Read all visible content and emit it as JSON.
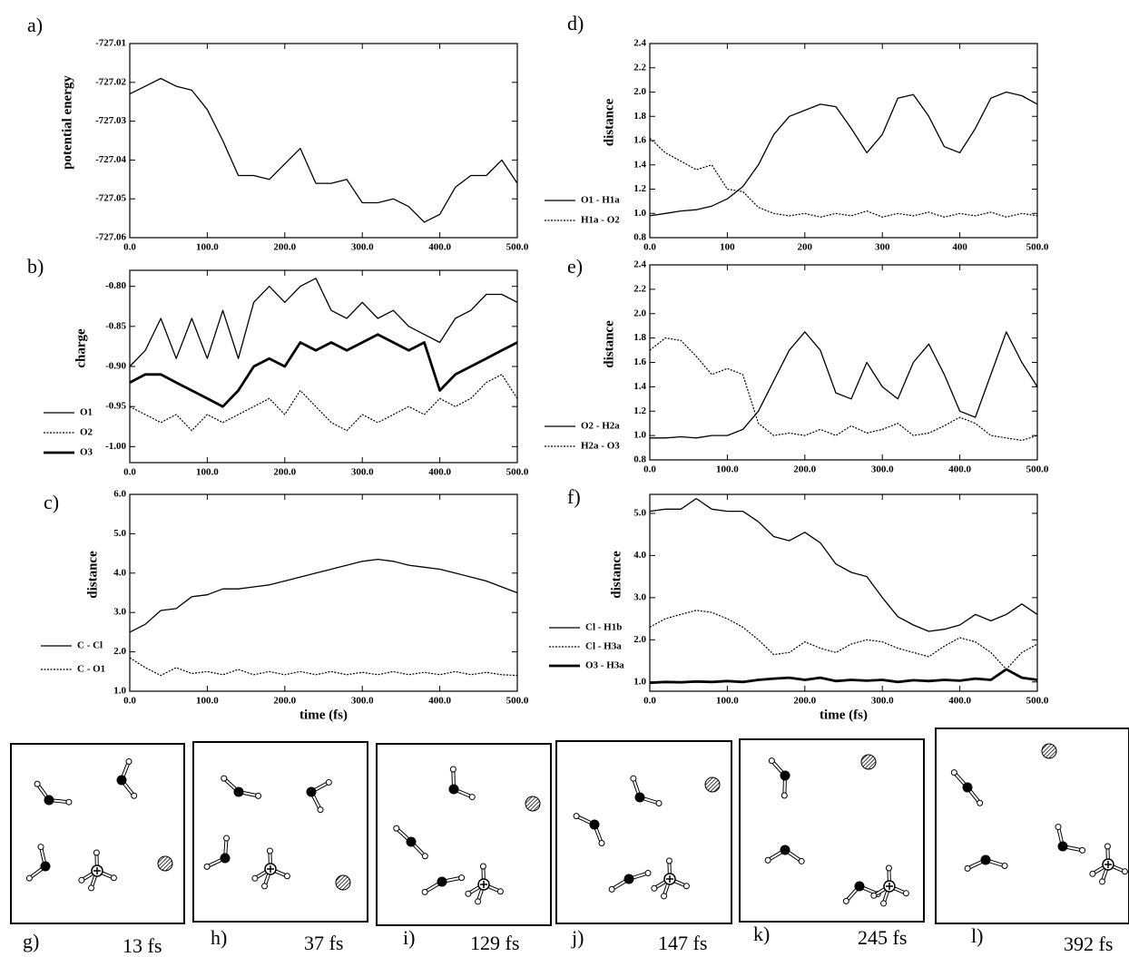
{
  "chart_data": [
    {
      "type": "line",
      "panel": "a)",
      "ylabel": "potential energy",
      "x": [
        0,
        20,
        40,
        60,
        80,
        100,
        120,
        140,
        160,
        180,
        200,
        220,
        240,
        260,
        280,
        300,
        320,
        340,
        360,
        380,
        400,
        420,
        440,
        460,
        480,
        500
      ],
      "series": [
        {
          "name": null,
          "color": "#000000",
          "style": "solid",
          "values": [
            -727.023,
            -727.021,
            -727.019,
            -727.021,
            -727.022,
            -727.027,
            -727.035,
            -727.044,
            -727.044,
            -727.045,
            -727.041,
            -727.037,
            -727.046,
            -727.046,
            -727.045,
            -727.051,
            -727.051,
            -727.05,
            -727.052,
            -727.056,
            -727.054,
            -727.047,
            -727.044,
            -727.044,
            -727.04,
            -727.046
          ]
        }
      ],
      "xlim": [
        0,
        500
      ],
      "xticks": [
        {
          "value": 0,
          "label": "0.0"
        },
        {
          "value": 100,
          "label": "100.0"
        },
        {
          "value": 200,
          "label": "200.0"
        },
        {
          "value": 300,
          "label": "300.0"
        },
        {
          "value": 400,
          "label": "400.0"
        },
        {
          "value": 500,
          "label": "500.0"
        }
      ],
      "ylim": [
        -727.06,
        -727.01
      ],
      "yticks": [
        -727.06,
        -727.05,
        -727.04,
        -727.03,
        -727.02,
        -727.01
      ]
    },
    {
      "type": "line",
      "panel": "b)",
      "ylabel": "charge",
      "x": [
        0,
        20,
        40,
        60,
        80,
        100,
        120,
        140,
        160,
        180,
        200,
        220,
        240,
        260,
        280,
        300,
        320,
        340,
        360,
        380,
        400,
        420,
        440,
        460,
        480,
        500
      ],
      "series": [
        {
          "name": "O1",
          "color": "#000000",
          "style": "solid",
          "values": [
            -0.9,
            -0.88,
            -0.84,
            -0.89,
            -0.84,
            -0.89,
            -0.83,
            -0.89,
            -0.82,
            -0.8,
            -0.82,
            -0.8,
            -0.79,
            -0.83,
            -0.84,
            -0.82,
            -0.84,
            -0.83,
            -0.85,
            -0.86,
            -0.87,
            -0.84,
            -0.83,
            -0.81,
            -0.81,
            -0.82
          ]
        },
        {
          "name": "O2",
          "color": "#000000",
          "style": "dotted",
          "values": [
            -0.95,
            -0.96,
            -0.97,
            -0.96,
            -0.98,
            -0.96,
            -0.97,
            -0.96,
            -0.95,
            -0.94,
            -0.96,
            -0.93,
            -0.95,
            -0.97,
            -0.98,
            -0.96,
            -0.97,
            -0.96,
            -0.95,
            -0.96,
            -0.94,
            -0.95,
            -0.94,
            -0.92,
            -0.91,
            -0.94
          ]
        },
        {
          "name": "O3",
          "color": "#000000",
          "style": "bold",
          "values": [
            -0.92,
            -0.91,
            -0.91,
            -0.92,
            -0.93,
            -0.94,
            -0.95,
            -0.93,
            -0.9,
            -0.89,
            -0.9,
            -0.87,
            -0.88,
            -0.87,
            -0.88,
            -0.87,
            -0.86,
            -0.87,
            -0.88,
            -0.87,
            -0.93,
            -0.91,
            -0.9,
            -0.89,
            -0.88,
            -0.87
          ]
        }
      ],
      "xlim": [
        0,
        500
      ],
      "xticks": [
        {
          "value": 0,
          "label": "0.0"
        },
        {
          "value": 100,
          "label": "100.0"
        },
        {
          "value": 200,
          "label": "200.0"
        },
        {
          "value": 300,
          "label": "300.0"
        },
        {
          "value": 400,
          "label": "400.0"
        },
        {
          "value": 500,
          "label": "500.0"
        }
      ],
      "ylim": [
        -1.02,
        -0.78
      ],
      "yticks": [
        {
          "value": -1.0,
          "label": "-1.00"
        },
        {
          "value": -0.95,
          "label": "-0.95"
        },
        {
          "value": -0.9,
          "label": "-0.90"
        },
        {
          "value": -0.85,
          "label": "-0.85"
        },
        {
          "value": -0.8,
          "label": "-0.80"
        }
      ]
    },
    {
      "type": "line",
      "panel": "c)",
      "ylabel": "distance",
      "xlabel": "time (fs)",
      "x": [
        0,
        20,
        40,
        60,
        80,
        100,
        120,
        140,
        160,
        180,
        200,
        220,
        240,
        260,
        280,
        300,
        320,
        340,
        360,
        380,
        400,
        420,
        440,
        460,
        480,
        500
      ],
      "series": [
        {
          "name": "C - Cl",
          "color": "#000000",
          "style": "solid",
          "values": [
            2.5,
            2.7,
            3.05,
            3.1,
            3.4,
            3.45,
            3.6,
            3.6,
            3.65,
            3.7,
            3.8,
            3.9,
            4.0,
            4.1,
            4.2,
            4.3,
            4.35,
            4.3,
            4.2,
            4.15,
            4.1,
            4.0,
            3.9,
            3.8,
            3.65,
            3.5
          ]
        },
        {
          "name": "C - O1",
          "color": "#000000",
          "style": "dotted",
          "values": [
            1.85,
            1.6,
            1.4,
            1.6,
            1.45,
            1.5,
            1.42,
            1.55,
            1.42,
            1.5,
            1.42,
            1.5,
            1.42,
            1.5,
            1.42,
            1.48,
            1.42,
            1.5,
            1.42,
            1.48,
            1.42,
            1.5,
            1.42,
            1.48,
            1.42,
            1.4
          ]
        }
      ],
      "xlim": [
        0,
        500
      ],
      "xticks": [
        {
          "value": 0,
          "label": "0.0"
        },
        {
          "value": 100,
          "label": "100.0"
        },
        {
          "value": 200,
          "label": "200.0"
        },
        {
          "value": 300,
          "label": "300.0"
        },
        {
          "value": 400,
          "label": "400.0"
        },
        {
          "value": 500,
          "label": "500.0"
        }
      ],
      "ylim": [
        1.0,
        6.0
      ],
      "yticks": [
        {
          "value": 1,
          "label": "1.0"
        },
        {
          "value": 2,
          "label": "2.0"
        },
        {
          "value": 3,
          "label": "3.0"
        },
        {
          "value": 4,
          "label": "4.0"
        },
        {
          "value": 5,
          "label": "5.0"
        },
        {
          "value": 6,
          "label": "6.0"
        }
      ]
    },
    {
      "type": "line",
      "panel": "d)",
      "ylabel": "distance",
      "x": [
        0,
        20,
        40,
        60,
        80,
        100,
        120,
        140,
        160,
        180,
        200,
        220,
        240,
        260,
        280,
        300,
        320,
        340,
        360,
        380,
        400,
        420,
        440,
        460,
        480,
        500
      ],
      "series": [
        {
          "name": "O1 - H1a",
          "color": "#000000",
          "style": "solid",
          "values": [
            0.98,
            1.0,
            1.02,
            1.03,
            1.06,
            1.12,
            1.22,
            1.4,
            1.65,
            1.8,
            1.85,
            1.9,
            1.88,
            1.7,
            1.5,
            1.65,
            1.95,
            1.98,
            1.8,
            1.55,
            1.5,
            1.7,
            1.95,
            2.0,
            1.97,
            1.9
          ]
        },
        {
          "name": "H1a - O2",
          "color": "#000000",
          "style": "dotted",
          "values": [
            1.62,
            1.5,
            1.43,
            1.36,
            1.4,
            1.2,
            1.18,
            1.05,
            1.0,
            0.98,
            1.0,
            0.97,
            1.0,
            0.98,
            1.02,
            0.97,
            1.0,
            0.98,
            1.01,
            0.97,
            1.0,
            0.98,
            1.01,
            0.97,
            1.0,
            0.98
          ]
        }
      ],
      "xlim": [
        0,
        500
      ],
      "xticks": [
        {
          "value": 0,
          "label": "0.0"
        },
        100,
        200,
        300,
        400,
        {
          "value": 500,
          "label": "500.0"
        }
      ],
      "ylim": [
        0.8,
        2.4
      ],
      "yticks": [
        0.8,
        {
          "value": 1,
          "label": "1.0"
        },
        1.2,
        1.4,
        1.6,
        1.8,
        {
          "value": 2,
          "label": "2.0"
        },
        2.2,
        2.4
      ]
    },
    {
      "type": "line",
      "panel": "e)",
      "ylabel": "distance",
      "x": [
        0,
        20,
        40,
        60,
        80,
        100,
        120,
        140,
        160,
        180,
        200,
        220,
        240,
        260,
        280,
        300,
        320,
        340,
        360,
        380,
        400,
        420,
        440,
        460,
        480,
        500
      ],
      "series": [
        {
          "name": "O2 - H2a",
          "color": "#000000",
          "style": "solid",
          "values": [
            0.98,
            0.98,
            0.99,
            0.98,
            1.0,
            1.0,
            1.05,
            1.2,
            1.45,
            1.7,
            1.85,
            1.7,
            1.35,
            1.3,
            1.6,
            1.4,
            1.3,
            1.6,
            1.75,
            1.5,
            1.2,
            1.15,
            1.5,
            1.85,
            1.6,
            1.4
          ]
        },
        {
          "name": "H2a - O3",
          "color": "#000000",
          "style": "dotted",
          "values": [
            1.7,
            1.8,
            1.78,
            1.65,
            1.5,
            1.55,
            1.5,
            1.1,
            1.0,
            1.02,
            1.0,
            1.05,
            1.0,
            1.08,
            1.02,
            1.05,
            1.1,
            1.0,
            1.02,
            1.08,
            1.15,
            1.1,
            1.0,
            0.98,
            0.96,
            1.0
          ]
        }
      ],
      "xlim": [
        0,
        500
      ],
      "xticks": [
        {
          "value": 0,
          "label": "0.0"
        },
        {
          "value": 100,
          "label": "100.0"
        },
        {
          "value": 200,
          "label": "200.0"
        },
        {
          "value": 300,
          "label": "300.0"
        },
        {
          "value": 400,
          "label": "400.0"
        },
        {
          "value": 500,
          "label": "500.0"
        }
      ],
      "ylim": [
        0.8,
        2.4
      ],
      "yticks": [
        0.8,
        {
          "value": 1,
          "label": "1.0"
        },
        1.2,
        1.4,
        1.6,
        1.8,
        {
          "value": 2,
          "label": "2.0"
        },
        2.2,
        2.4
      ]
    },
    {
      "type": "line",
      "panel": "f)",
      "ylabel": "distance",
      "xlabel": "time (fs)",
      "x": [
        0,
        20,
        40,
        60,
        80,
        100,
        120,
        140,
        160,
        180,
        200,
        220,
        240,
        260,
        280,
        300,
        320,
        340,
        360,
        380,
        400,
        420,
        440,
        460,
        480,
        500
      ],
      "series": [
        {
          "name": "Cl - H1b",
          "color": "#000000",
          "style": "solid",
          "values": [
            5.05,
            5.1,
            5.1,
            5.35,
            5.1,
            5.05,
            5.05,
            4.8,
            4.45,
            4.35,
            4.55,
            4.3,
            3.8,
            3.6,
            3.5,
            3.0,
            2.55,
            2.35,
            2.2,
            2.25,
            2.35,
            2.6,
            2.45,
            2.6,
            2.85,
            2.6
          ]
        },
        {
          "name": "Cl - H3a",
          "color": "#000000",
          "style": "dotted",
          "values": [
            2.3,
            2.5,
            2.6,
            2.7,
            2.65,
            2.5,
            2.3,
            2.0,
            1.65,
            1.7,
            1.95,
            1.8,
            1.7,
            1.9,
            2.0,
            1.95,
            1.8,
            1.7,
            1.6,
            1.85,
            2.05,
            1.95,
            1.7,
            1.3,
            1.7,
            1.9
          ]
        },
        {
          "name": "O3 - H3a",
          "color": "#000000",
          "style": "bold",
          "values": [
            0.98,
            1.0,
            0.99,
            1.01,
            1.0,
            1.02,
            1.0,
            1.05,
            1.08,
            1.1,
            1.05,
            1.1,
            1.02,
            1.05,
            1.03,
            1.05,
            1.0,
            1.04,
            1.02,
            1.05,
            1.03,
            1.08,
            1.05,
            1.3,
            1.1,
            1.05
          ]
        }
      ],
      "xlim": [
        0,
        500
      ],
      "xticks": [
        {
          "value": 0,
          "label": "0.0"
        },
        {
          "value": 100,
          "label": "100.0"
        },
        {
          "value": 200,
          "label": "200.0"
        },
        {
          "value": 300,
          "label": "300.0"
        },
        {
          "value": 400,
          "label": "400.0"
        },
        {
          "value": 500,
          "label": "500.0"
        }
      ],
      "ylim": [
        0.78,
        5.45
      ],
      "yticks": [
        {
          "value": 1,
          "label": "1.0"
        },
        {
          "value": 2,
          "label": "2.0"
        },
        {
          "value": 3,
          "label": "3.0"
        },
        {
          "value": 4,
          "label": "4.0"
        },
        {
          "value": 5,
          "label": "5.0"
        }
      ]
    }
  ],
  "panels": [
    {
      "label": "g)",
      "time": "13 fs"
    },
    {
      "label": "h)",
      "time": "37 fs"
    },
    {
      "label": "i)",
      "time": "129 fs"
    },
    {
      "label": "j)",
      "time": "147 fs"
    },
    {
      "label": "k)",
      "time": "245 fs"
    },
    {
      "label": "l)",
      "time": "392 fs"
    }
  ]
}
